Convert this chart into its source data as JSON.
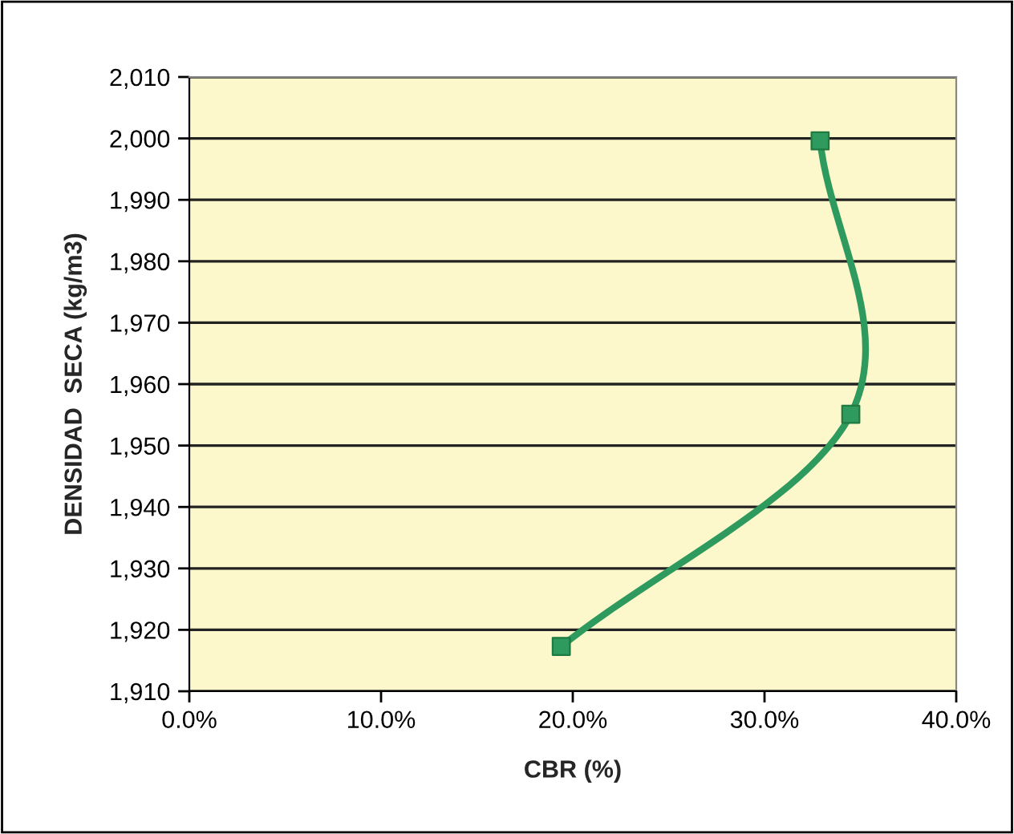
{
  "chart_data": {
    "type": "line",
    "xlabel": "CBR (%)",
    "ylabel": "DENSIDAD  SECA (kg/m3)",
    "x": [
      19.4,
      34.5,
      32.9
    ],
    "series": [
      {
        "color": "#2e9a5e",
        "values": [
          1917.3,
          1955.1,
          1999.6
        ]
      }
    ],
    "xlim": [
      0,
      40
    ],
    "xticks": [
      {
        "value": 0,
        "label": "0.0%"
      },
      {
        "value": 10,
        "label": "10.0%"
      },
      {
        "value": 20,
        "label": "20.0%"
      },
      {
        "value": 30,
        "label": "30.0%"
      },
      {
        "value": 40,
        "label": "40.0%"
      }
    ],
    "ylim": [
      1910,
      2010
    ],
    "yticks": [
      {
        "value": 1910,
        "label": "1,910"
      },
      {
        "value": 1920,
        "label": "1,920"
      },
      {
        "value": 1930,
        "label": "1,930"
      },
      {
        "value": 1940,
        "label": "1,940"
      },
      {
        "value": 1950,
        "label": "1,950"
      },
      {
        "value": 1960,
        "label": "1,960"
      },
      {
        "value": 1970,
        "label": "1,970"
      },
      {
        "value": 1980,
        "label": "1,980"
      },
      {
        "value": 1990,
        "label": "1,990"
      },
      {
        "value": 2000,
        "label": "2,000"
      },
      {
        "value": 2010,
        "label": "2,010"
      }
    ],
    "grid": "y",
    "marker": "square",
    "line_style": "solid"
  }
}
